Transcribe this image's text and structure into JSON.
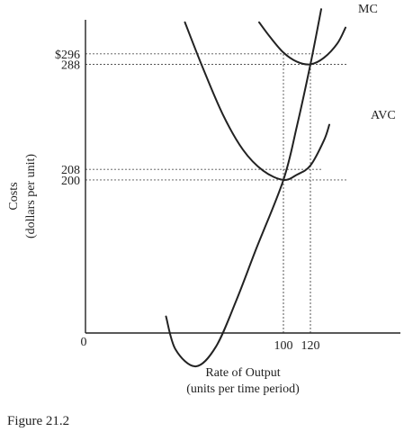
{
  "chart_data": {
    "type": "line",
    "figure_label": "Figure 21.2",
    "xlabel": "Rate of Output",
    "xlabel_sub": "(units per time period)",
    "ylabel": "Costs",
    "ylabel_sub": "(dollars per unit)",
    "origin_label": "0",
    "xlim": [
      0,
      150
    ],
    "ylim": [
      0,
      320
    ],
    "x_ticks": [
      {
        "value": 100,
        "label": "100"
      },
      {
        "value": 120,
        "label": "120"
      }
    ],
    "y_ticks": [
      {
        "value": 296,
        "label": "$296"
      },
      {
        "value": 288,
        "label": "288"
      },
      {
        "value": 208,
        "label": "208"
      },
      {
        "value": 200,
        "label": "200"
      }
    ],
    "reference_lines": [
      {
        "x": 100,
        "y": 208
      },
      {
        "x": 100,
        "y": 296
      },
      {
        "x": 120,
        "y": 200
      },
      {
        "x": 120,
        "y": 288
      }
    ],
    "series": [
      {
        "name": "MC",
        "points": [
          [
            13,
            96
          ],
          [
            20,
            71
          ],
          [
            35,
            58
          ],
          [
            50,
            73
          ],
          [
            65,
            108
          ],
          [
            80,
            148
          ],
          [
            100,
            200
          ],
          [
            110,
            241
          ],
          [
            120,
            288
          ],
          [
            128,
            330
          ]
        ]
      },
      {
        "name": "AVC",
        "points": [
          [
            27,
            320
          ],
          [
            40,
            286
          ],
          [
            55,
            250
          ],
          [
            70,
            223
          ],
          [
            85,
            207
          ],
          [
            100,
            200
          ],
          [
            110,
            204
          ],
          [
            120,
            211
          ],
          [
            130,
            230
          ],
          [
            134,
            242
          ]
        ]
      },
      {
        "name": "",
        "points": [
          [
            82,
            320
          ],
          [
            90,
            309
          ],
          [
            100,
            297
          ],
          [
            110,
            290
          ],
          [
            120,
            288
          ],
          [
            130,
            293
          ],
          [
            140,
            304
          ],
          [
            146,
            316
          ]
        ]
      }
    ]
  }
}
